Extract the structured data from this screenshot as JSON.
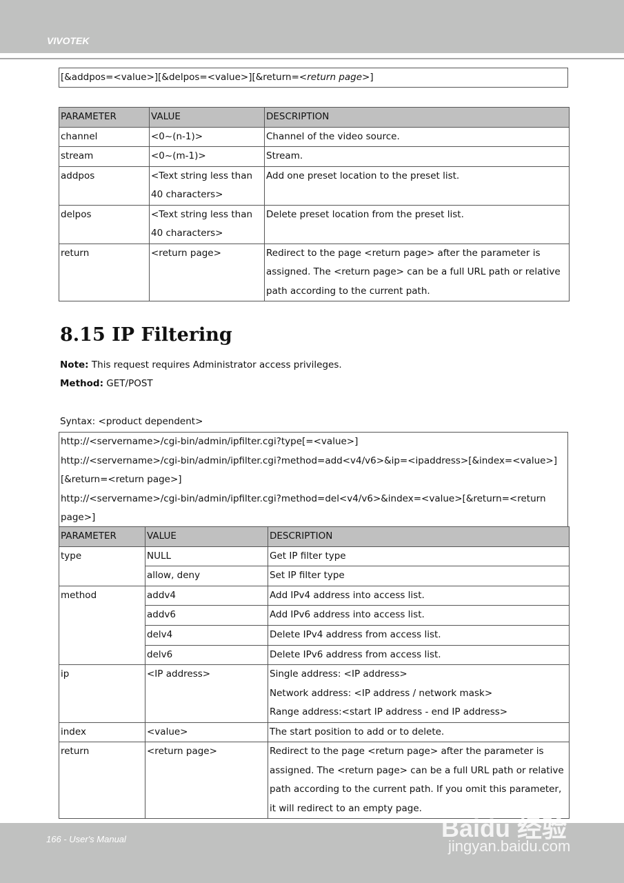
{
  "header": {
    "brand": "VIVOTEK"
  },
  "footer": {
    "page": "166 - User's Manual",
    "watermark": "Baidu 经验",
    "watermark_url": "jingyan.baidu.com"
  },
  "syntax_top": {
    "a": "[&addpos=<value>][&delpos=<value>][&return=<",
    "b": "return page",
    ">": ">]"
  },
  "table1": {
    "headers": [
      "PARAMETER",
      "VALUE",
      "DESCRIPTION"
    ],
    "rows": [
      [
        "channel",
        "<0~(n-1)>",
        "Channel of the video source."
      ],
      [
        "stream",
        "<0~(m-1)>",
        "Stream."
      ],
      [
        "addpos",
        "<Text string less than 40 characters>",
        "Add one preset location to the preset list."
      ],
      [
        "delpos",
        "<Text string less than 40 characters>",
        "Delete preset location from the preset list."
      ],
      [
        "return",
        "<return page>",
        "Redirect to the page <return page> after the parameter is assigned. The <return page> can be a full URL path or relative path according to the current path."
      ]
    ]
  },
  "section": {
    "title": "8.15 IP Filtering",
    "note_label": "Note:",
    "note": " This request requires Administrator access privileges.",
    "method_label": "Method:",
    "method": " GET/POST",
    "syntax": "Syntax: <product dependent>"
  },
  "syntax_lines": [
    "http://<servername>/cgi-bin/admin/ipfilter.cgi?type[=<value>]",
    "http://<servername>/cgi-bin/admin/ipfilter.cgi?method=add<v4/v6>&ip=<ipaddress>[&index=<value>]",
    "[&return=<return page>]",
    "http://<servername>/cgi-bin/admin/ipfilter.cgi?method=del<v4/v6>&index=<value>[&return=<return",
    "page>]"
  ],
  "table2": {
    "headers": [
      "PARAMETER",
      "VALUE",
      "DESCRIPTION"
    ],
    "rows": [
      [
        "type",
        "NULL",
        "Get IP filter type"
      ],
      [
        "",
        "allow, deny",
        "Set IP filter type"
      ],
      [
        "method",
        "addv4",
        "Add IPv4 address into access list."
      ],
      [
        "",
        "addv6",
        "Add IPv6 address into access list."
      ],
      [
        "",
        "delv4",
        "Delete IPv4 address from access list."
      ],
      [
        "",
        "delv6",
        "Delete IPv6 address from access list."
      ],
      [
        "ip",
        "<IP address>",
        "Single address: <IP address>\nNetwork address: <IP address / network mask>\nRange address:<start IP address - end IP address>"
      ],
      [
        "index",
        "<value>",
        "The start position to add or to delete."
      ],
      [
        "return",
        "<return page>",
        "Redirect to the page <return page> after the parameter is assigned. The <return page> can be a full URL path or relative path according to the current path. If you omit this parameter, it will redirect to an empty page."
      ]
    ]
  }
}
